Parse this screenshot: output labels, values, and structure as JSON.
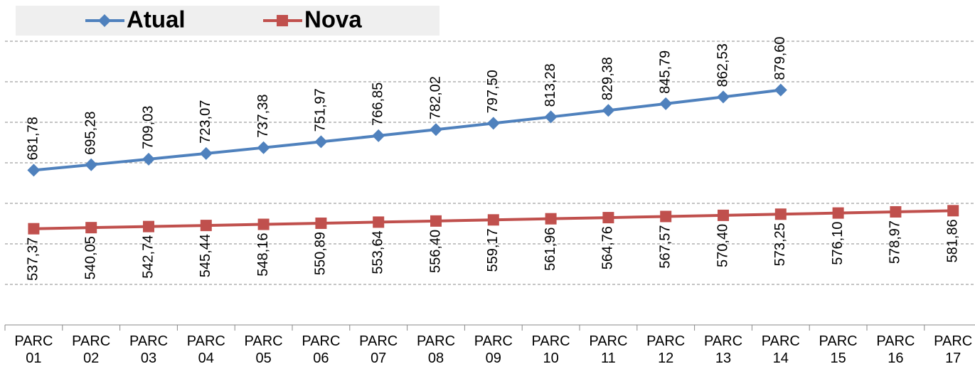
{
  "chart_data": {
    "type": "line",
    "categories": [
      "PARC\n01",
      "PARC\n02",
      "PARC\n03",
      "PARC\n04",
      "PARC\n05",
      "PARC\n06",
      "PARC\n07",
      "PARC\n08",
      "PARC\n09",
      "PARC\n10",
      "PARC\n11",
      "PARC\n12",
      "PARC\n13",
      "PARC\n14",
      "PARC\n15",
      "PARC\n16",
      "PARC\n17"
    ],
    "series": [
      {
        "name": "Atual",
        "color": "#4f81bd",
        "marker": "diamond",
        "values": [
          681.78,
          695.28,
          709.03,
          723.07,
          737.38,
          751.97,
          766.85,
          782.02,
          797.5,
          813.28,
          829.38,
          845.79,
          862.53,
          879.6,
          null,
          null,
          null
        ],
        "value_labels": [
          "681,78",
          "695,28",
          "709,03",
          "723,07",
          "737,38",
          "751,97",
          "766,85",
          "782,02",
          "797,50",
          "813,28",
          "829,38",
          "845,79",
          "862,53",
          "879,60",
          null,
          null,
          null
        ]
      },
      {
        "name": "Nova",
        "color": "#c0504d",
        "marker": "square",
        "values": [
          537.37,
          540.05,
          542.74,
          545.44,
          548.16,
          550.89,
          553.64,
          556.4,
          559.17,
          561.96,
          564.76,
          567.57,
          570.4,
          573.25,
          576.1,
          578.97,
          581.86
        ],
        "value_labels": [
          "537,37",
          "540,05",
          "542,74",
          "545,44",
          "548,16",
          "550,89",
          "553,64",
          "556,40",
          "559,17",
          "561,96",
          "564,76",
          "567,57",
          "570,40",
          "573,25",
          "576,10",
          "578,97",
          "581,86"
        ]
      }
    ],
    "ylim": [
      300,
      1000
    ],
    "yticks": [
      300,
      400,
      500,
      600,
      700,
      800,
      900,
      1000
    ],
    "grid": true
  }
}
